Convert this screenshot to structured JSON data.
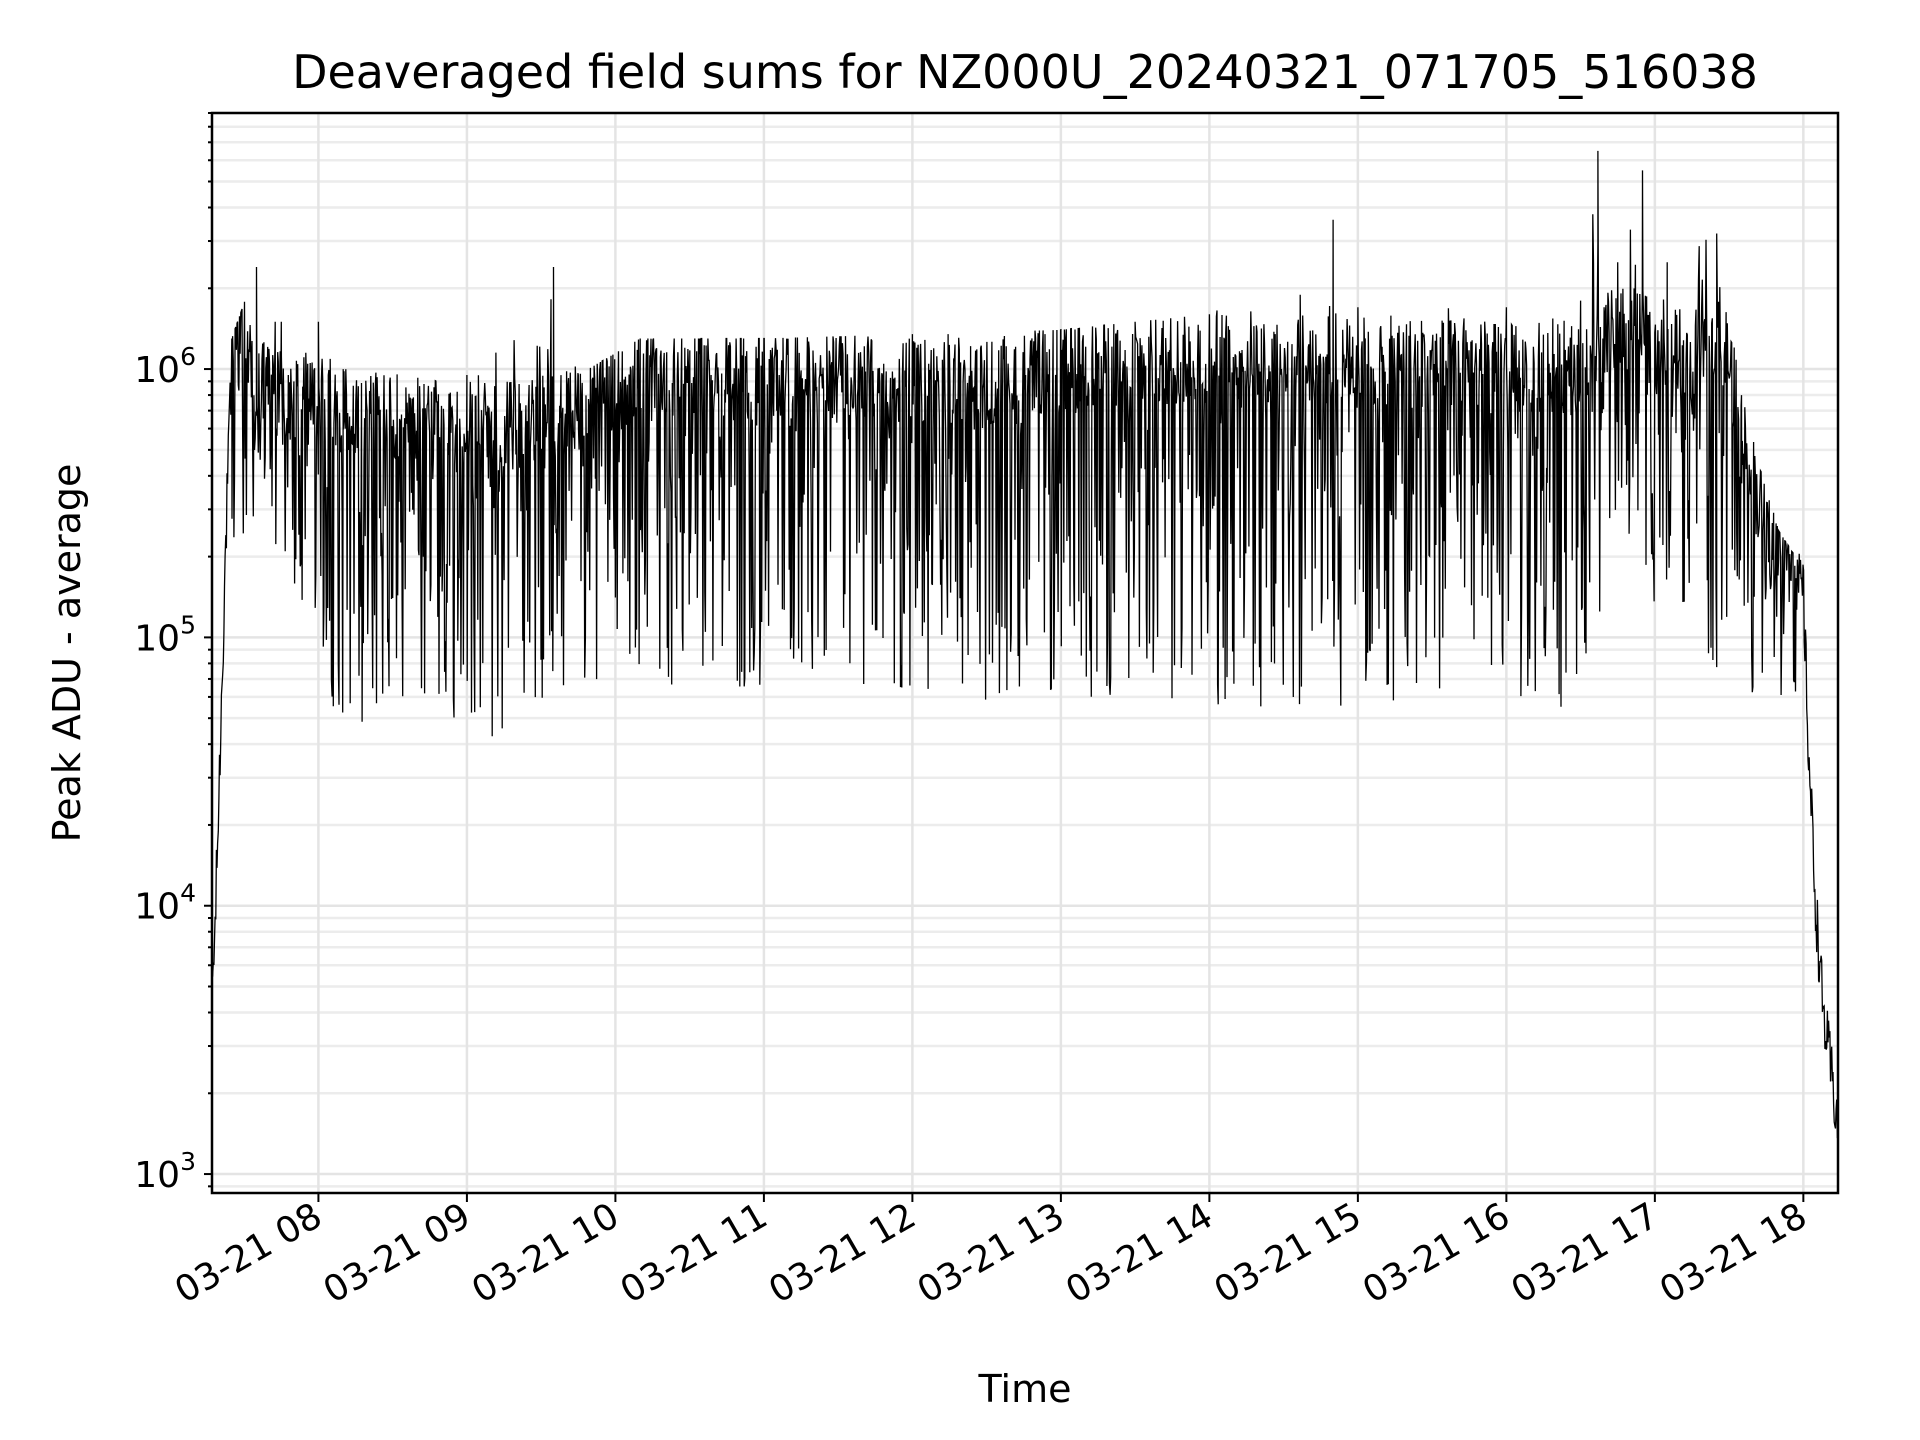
{
  "chart_data": {
    "type": "line",
    "title": "Deaveraged field sums for NZ000U_20240321_071705_516038",
    "xlabel": "Time",
    "ylabel": "Peak ADU - average",
    "yscale": "log",
    "ylim": [
      850,
      9000000
    ],
    "xlim": [
      "03-21 07:17",
      "03-21 18:14"
    ],
    "grid": true,
    "line_color": "#000000",
    "x_ticks": [
      "03-21 08",
      "03-21 09",
      "03-21 10",
      "03-21 11",
      "03-21 12",
      "03-21 13",
      "03-21 14",
      "03-21 15",
      "03-21 16",
      "03-21 17",
      "03-21 18"
    ],
    "y_ticks": [
      {
        "value": 1000,
        "base": "10",
        "exp": "3"
      },
      {
        "value": 10000,
        "base": "10",
        "exp": "4"
      },
      {
        "value": 100000,
        "base": "10",
        "exp": "5"
      },
      {
        "value": 1000000,
        "base": "10",
        "exp": "6"
      }
    ],
    "series": [
      {
        "x": [
          "03-21 07:17",
          "03-21 07:18",
          "03-21 07:20",
          "03-21 07:22",
          "03-21 07:24",
          "03-21 07:26",
          "03-21 07:28",
          "03-21 07:30",
          "03-21 07:33",
          "03-21 07:36",
          "03-21 07:40",
          "03-21 07:45",
          "03-21 08:00",
          "03-21 08:30",
          "03-21 09:00",
          "03-21 09:30",
          "03-21 10:00",
          "03-21 10:30",
          "03-21 11:00",
          "03-21 11:30",
          "03-21 12:00",
          "03-21 12:30",
          "03-21 13:00",
          "03-21 13:30",
          "03-21 14:00",
          "03-21 14:30",
          "03-21 15:00",
          "03-21 15:30",
          "03-21 16:00",
          "03-21 16:30",
          "03-21 16:45",
          "03-21 17:00",
          "03-21 17:15",
          "03-21 17:25",
          "03-21 17:30",
          "03-21 17:45",
          "03-21 18:00",
          "03-21 18:02",
          "03-21 18:05",
          "03-21 18:08",
          "03-21 18:11",
          "03-21 18:14"
        ],
        "y": [
          5000,
          7000,
          30000,
          150000,
          600000,
          1300000,
          1400000,
          1200000,
          800000,
          700000,
          750000,
          700000,
          650000,
          550000,
          500000,
          550000,
          750000,
          850000,
          850000,
          800000,
          750000,
          750000,
          850000,
          900000,
          950000,
          950000,
          900000,
          900000,
          850000,
          850000,
          1200000,
          1100000,
          900000,
          1300000,
          900000,
          200000,
          150000,
          40000,
          10000,
          4000,
          2500,
          1500
        ]
      }
    ],
    "envelope_upper": [
      [
        "03-21 07:25",
        1300000
      ],
      [
        "03-21 07:35",
        2400000
      ],
      [
        "03-21 07:45",
        1500000
      ],
      [
        "03-21 08:00",
        1500000
      ],
      [
        "03-21 08:10",
        1000000
      ],
      [
        "03-21 09:00",
        950000
      ],
      [
        "03-21 09:35",
        2400000
      ],
      [
        "03-21 09:45",
        950000
      ],
      [
        "03-21 10:10",
        1300000
      ],
      [
        "03-21 11:00",
        1300000
      ],
      [
        "03-21 12:00",
        1350000
      ],
      [
        "03-21 13:00",
        1400000
      ],
      [
        "03-21 13:30",
        1500000
      ],
      [
        "03-21 14:00",
        1600000
      ],
      [
        "03-21 14:50",
        3600000
      ],
      [
        "03-21 15:00",
        1700000
      ],
      [
        "03-21 16:00",
        1700000
      ],
      [
        "03-21 16:30",
        1800000
      ],
      [
        "03-21 16:37",
        6500000
      ],
      [
        "03-21 16:45",
        2500000
      ],
      [
        "03-21 16:55",
        5500000
      ],
      [
        "03-21 17:05",
        2500000
      ],
      [
        "03-21 17:25",
        3200000
      ],
      [
        "03-21 17:35",
        800000
      ],
      [
        "03-21 17:50",
        250000
      ],
      [
        "03-21 18:00",
        180000
      ]
    ],
    "envelope_lower": [
      [
        "03-21 07:40",
        200000
      ],
      [
        "03-21 08:10",
        45000
      ],
      [
        "03-21 08:45",
        60000
      ],
      [
        "03-21 09:08",
        38000
      ],
      [
        "03-21 09:30",
        55000
      ],
      [
        "03-21 10:00",
        70000
      ],
      [
        "03-21 11:00",
        60000
      ],
      [
        "03-21 12:00",
        55000
      ],
      [
        "03-21 13:00",
        60000
      ],
      [
        "03-21 14:00",
        55000
      ],
      [
        "03-21 14:48",
        50000
      ],
      [
        "03-21 15:00",
        55000
      ],
      [
        "03-21 16:00",
        60000
      ],
      [
        "03-21 16:20",
        50000
      ],
      [
        "03-21 16:45",
        150000
      ],
      [
        "03-21 17:10",
        100000
      ],
      [
        "03-21 17:40",
        60000
      ],
      [
        "03-21 18:00",
        60000
      ]
    ]
  }
}
